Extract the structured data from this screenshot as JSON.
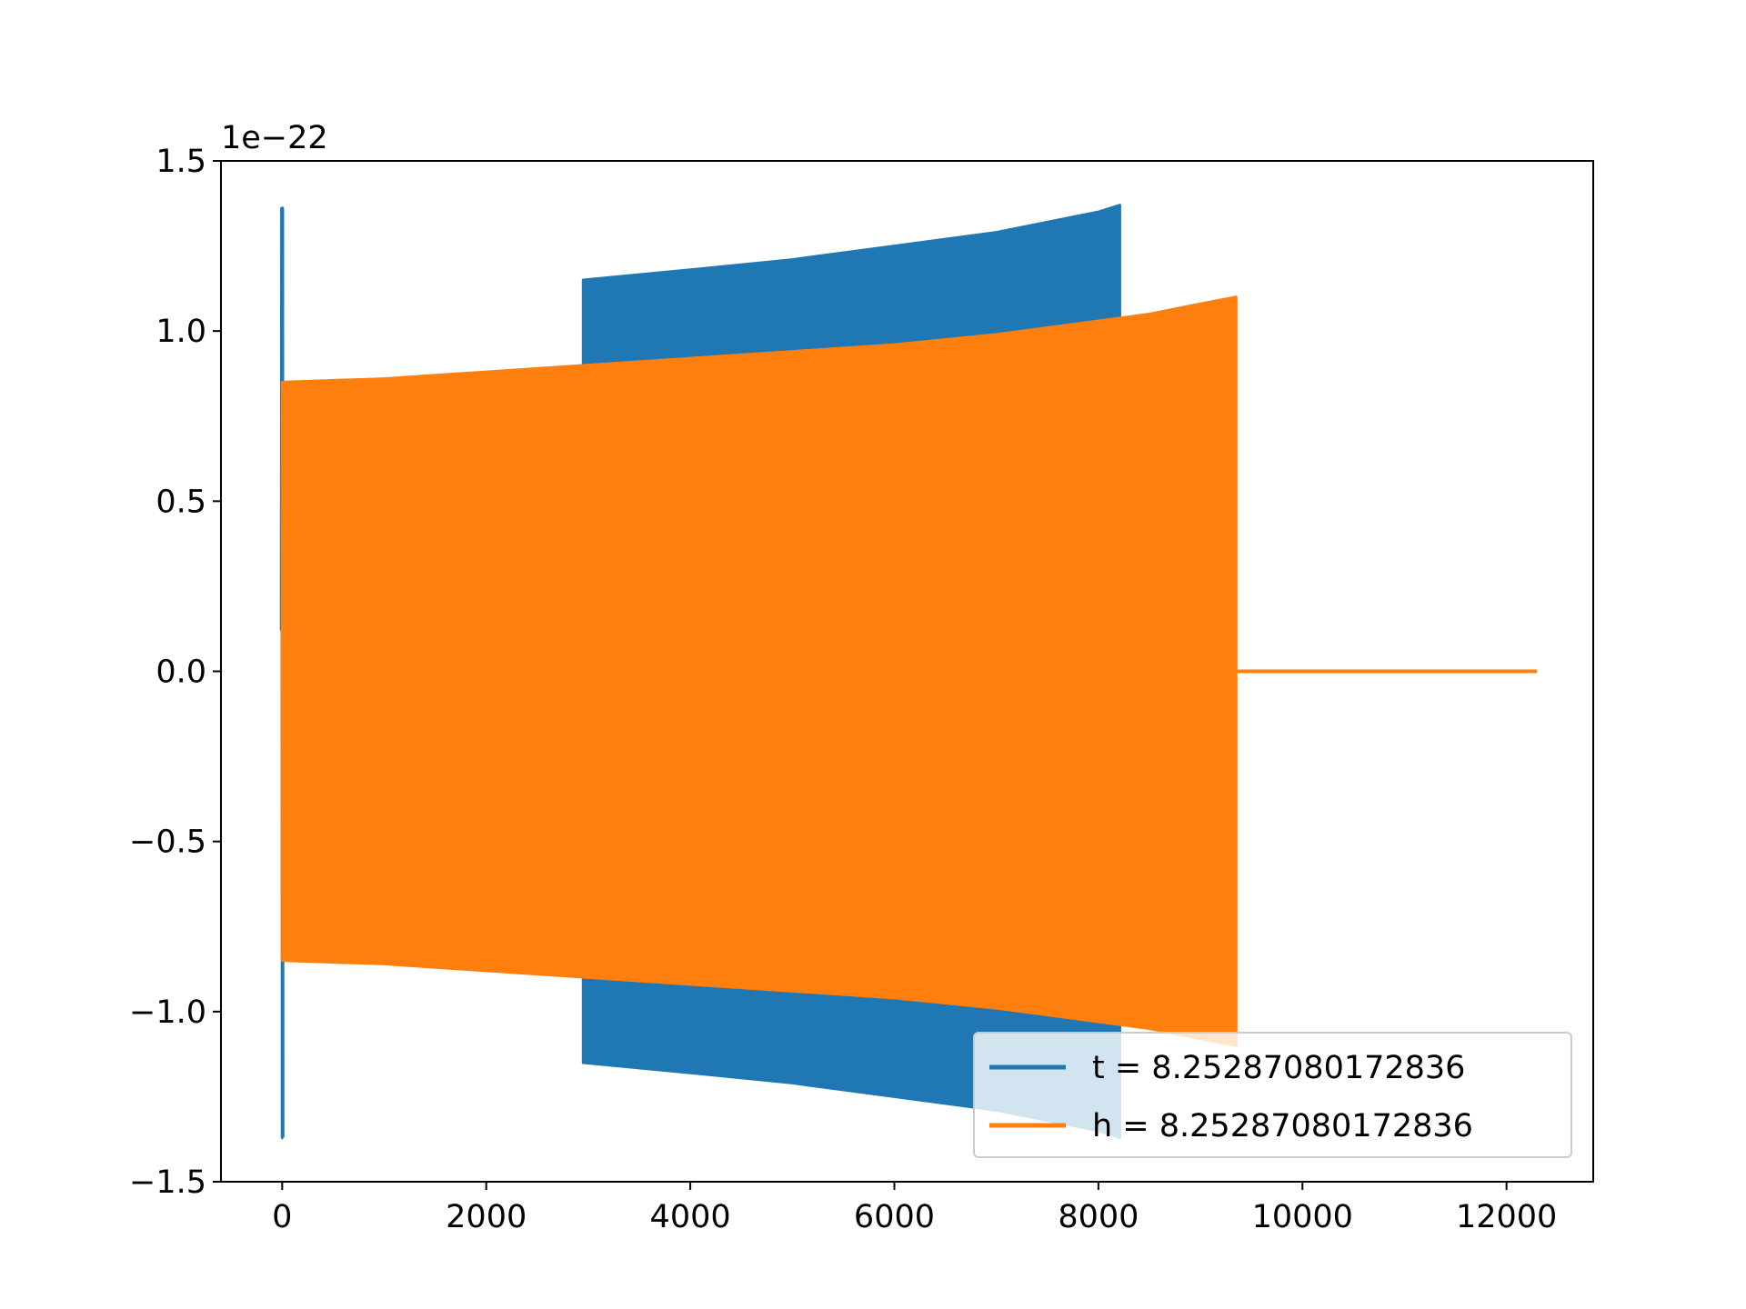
{
  "chart_data": {
    "type": "line",
    "title": "",
    "xlabel": "",
    "ylabel": "",
    "y_offset_label": "1e−22",
    "xlim": [
      -600,
      12850
    ],
    "ylim": [
      -1.5,
      1.5
    ],
    "grid": false,
    "legend_position": "lower right",
    "x_ticks": [
      0,
      2000,
      4000,
      6000,
      8000,
      10000,
      12000
    ],
    "x_tick_labels": [
      "0",
      "2000",
      "4000",
      "6000",
      "8000",
      "10000",
      "12000"
    ],
    "y_ticks": [
      -1.5,
      -1.0,
      -0.5,
      0.0,
      0.5,
      1.0,
      1.5
    ],
    "y_tick_labels": [
      "−1.5",
      "−1.0",
      "−0.5",
      "0.0",
      "0.5",
      "1.0",
      "1.5"
    ],
    "series": [
      {
        "name": "t = 8.25287080172836",
        "color": "#1f77b4",
        "spike": {
          "x_start": -5,
          "x_end": 10,
          "upper": 1.36,
          "lower": -1.37
        },
        "envelope": {
          "x": [
            2950,
            4000,
            5000,
            6000,
            7000,
            7500,
            8000,
            8210
          ],
          "upper": [
            1.15,
            1.18,
            1.21,
            1.25,
            1.29,
            1.32,
            1.35,
            1.37
          ],
          "lower": [
            -1.15,
            -1.18,
            -1.21,
            -1.25,
            -1.29,
            -1.32,
            -1.35,
            -1.37
          ]
        }
      },
      {
        "name": "h = 8.25287080172836",
        "color": "#ff7f0e",
        "envelope": {
          "x": [
            0,
            1000,
            2000,
            3000,
            4000,
            5000,
            6000,
            7000,
            8000,
            8500,
            9000,
            9350
          ],
          "upper": [
            0.85,
            0.86,
            0.88,
            0.9,
            0.92,
            0.94,
            0.96,
            0.99,
            1.03,
            1.05,
            1.08,
            1.1
          ],
          "lower": [
            -0.85,
            -0.86,
            -0.88,
            -0.9,
            -0.92,
            -0.94,
            -0.96,
            -0.99,
            -1.03,
            -1.05,
            -1.08,
            -1.1
          ]
        },
        "tail": {
          "x_start": 9350,
          "x_end": 12300,
          "y": 0.0
        }
      }
    ]
  }
}
